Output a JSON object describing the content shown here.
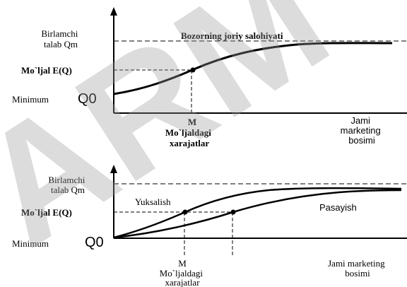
{
  "watermark": "ARM",
  "chart_top": {
    "y_label_demand": [
      "Birlamchi",
      "talab Qm"
    ],
    "market_potential_label": "Bozorning joriy salohiyati",
    "y_label_forecast": "Mo`ljal E(Q)",
    "y_label_min_word": "Minimum",
    "y_label_min_symbol": "Q0",
    "x_point_letter": "M",
    "x_point_label": [
      "Mo`ljaldagi",
      "xarajatlar"
    ],
    "x_axis_label": [
      "Jami",
      "marketing",
      "bosimi"
    ]
  },
  "chart_bottom": {
    "y_label_demand": [
      "Birlamchi",
      "talab Qm"
    ],
    "curve_up_label": "Yuksalish",
    "curve_down_label": "Pasayish",
    "y_label_forecast": "Mo`ljal E(Q)",
    "y_label_min_word": "Minimum",
    "y_label_min_symbol": "Q0",
    "x_point_letter": "M",
    "x_point_label": [
      "Mo`ljaldagi",
      "xarajatlar"
    ],
    "x_axis_label": [
      "Jami marketing",
      "bosimi"
    ]
  }
}
